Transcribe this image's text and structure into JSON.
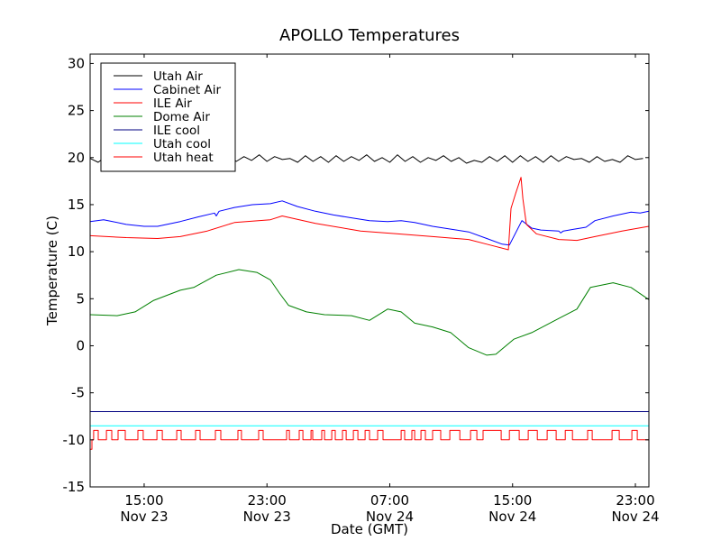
{
  "chart_data": {
    "type": "line",
    "title": "APOLLO Temperatures",
    "xlabel": "Date (GMT)",
    "ylabel": "Temperature (C)",
    "x_units": "hours since Nov 23 00:00 GMT",
    "xlim": [
      11.48,
      47.88
    ],
    "ylim": [
      -15,
      31
    ],
    "yticks": [
      -15,
      -10,
      -5,
      0,
      5,
      10,
      15,
      20,
      25,
      30
    ],
    "xticks": [
      {
        "x": 15,
        "time": "15:00",
        "date": "Nov 23"
      },
      {
        "x": 23,
        "time": "23:00",
        "date": "Nov 23"
      },
      {
        "x": 31,
        "time": "07:00",
        "date": "Nov 24"
      },
      {
        "x": 39,
        "time": "15:00",
        "date": "Nov 24"
      },
      {
        "x": 47,
        "time": "23:00",
        "date": "Nov 24"
      }
    ],
    "grid": false,
    "legend_position": "top-left",
    "series": [
      {
        "name": "Utah Air",
        "color": "#000000",
        "x_start": 11.5,
        "x_step": 0.5,
        "values": [
          19.9,
          19.5,
          20.1,
          19.6,
          20.2,
          19.5,
          20.0,
          19.6,
          20.3,
          19.5,
          20.1,
          19.7,
          20.2,
          19.6,
          20.0,
          19.8,
          19.9,
          19.5,
          20.2,
          19.6,
          20.1,
          19.7,
          20.3,
          19.6,
          20.1,
          19.8,
          19.9,
          19.5,
          20.2,
          19.6,
          20.1,
          19.5,
          20.2,
          19.6,
          20.1,
          19.7,
          20.3,
          19.6,
          20.0,
          19.5,
          20.3,
          19.6,
          20.1,
          19.5,
          20.0,
          19.7,
          20.2,
          19.6,
          20.0,
          19.4,
          19.7,
          19.5,
          20.1,
          19.6,
          20.2,
          19.5,
          20.2,
          19.6,
          20.1,
          19.5,
          20.2,
          19.6,
          20.1,
          19.8,
          19.9,
          19.5,
          20.1,
          19.6,
          19.8,
          19.5,
          20.2,
          19.8,
          19.9
        ]
      },
      {
        "name": "Cabinet Air",
        "color": "#0000ff",
        "points": [
          [
            11.48,
            13.2
          ],
          [
            12.36,
            13.4
          ],
          [
            12.95,
            13.2
          ],
          [
            13.83,
            12.9
          ],
          [
            15.0,
            12.7
          ],
          [
            15.88,
            12.7
          ],
          [
            17.35,
            13.2
          ],
          [
            18.53,
            13.7
          ],
          [
            19.58,
            14.1
          ],
          [
            19.7,
            13.8
          ],
          [
            19.88,
            14.3
          ],
          [
            20.88,
            14.7
          ],
          [
            22.05,
            15.0
          ],
          [
            23.22,
            15.1
          ],
          [
            23.99,
            15.4
          ],
          [
            24.98,
            14.8
          ],
          [
            26.16,
            14.3
          ],
          [
            27.33,
            13.9
          ],
          [
            28.51,
            13.6
          ],
          [
            29.68,
            13.3
          ],
          [
            30.86,
            13.2
          ],
          [
            31.74,
            13.3
          ],
          [
            32.62,
            13.1
          ],
          [
            33.79,
            12.7
          ],
          [
            34.97,
            12.4
          ],
          [
            36.14,
            12.1
          ],
          [
            37.32,
            11.4
          ],
          [
            38.32,
            10.8
          ],
          [
            38.79,
            10.7
          ],
          [
            39.61,
            13.3
          ],
          [
            40.25,
            12.5
          ],
          [
            40.84,
            12.3
          ],
          [
            42.01,
            12.2
          ],
          [
            42.13,
            12.0
          ],
          [
            42.31,
            12.2
          ],
          [
            43.78,
            12.6
          ],
          [
            44.37,
            13.3
          ],
          [
            45.55,
            13.8
          ],
          [
            46.72,
            14.2
          ],
          [
            47.31,
            14.1
          ],
          [
            47.88,
            14.3
          ]
        ]
      },
      {
        "name": "ILE Air",
        "color": "#ff0000",
        "points": [
          [
            11.48,
            11.7
          ],
          [
            13.83,
            11.5
          ],
          [
            15.88,
            11.4
          ],
          [
            17.35,
            11.6
          ],
          [
            19.11,
            12.2
          ],
          [
            20.88,
            13.1
          ],
          [
            23.22,
            13.4
          ],
          [
            23.99,
            13.8
          ],
          [
            26.16,
            13.0
          ],
          [
            29.1,
            12.2
          ],
          [
            31.45,
            11.9
          ],
          [
            33.79,
            11.6
          ],
          [
            36.14,
            11.3
          ],
          [
            37.32,
            10.8
          ],
          [
            38.73,
            10.2
          ],
          [
            38.9,
            14.6
          ],
          [
            39.2,
            16.2
          ],
          [
            39.55,
            17.9
          ],
          [
            39.67,
            15.6
          ],
          [
            39.9,
            12.9
          ],
          [
            40.55,
            11.9
          ],
          [
            42.01,
            11.3
          ],
          [
            43.19,
            11.2
          ],
          [
            44.37,
            11.6
          ],
          [
            46.13,
            12.2
          ],
          [
            47.88,
            12.7
          ]
        ]
      },
      {
        "name": "Dome Air",
        "color": "#008000",
        "points": [
          [
            11.48,
            3.3
          ],
          [
            13.24,
            3.2
          ],
          [
            14.41,
            3.6
          ],
          [
            15.59,
            4.8
          ],
          [
            17.35,
            5.9
          ],
          [
            18.23,
            6.2
          ],
          [
            19.7,
            7.5
          ],
          [
            21.17,
            8.1
          ],
          [
            22.34,
            7.8
          ],
          [
            23.22,
            7.0
          ],
          [
            23.81,
            5.6
          ],
          [
            24.4,
            4.3
          ],
          [
            25.57,
            3.6
          ],
          [
            26.75,
            3.3
          ],
          [
            28.51,
            3.2
          ],
          [
            29.68,
            2.7
          ],
          [
            30.86,
            3.9
          ],
          [
            31.74,
            3.6
          ],
          [
            32.62,
            2.4
          ],
          [
            33.79,
            2.0
          ],
          [
            34.97,
            1.4
          ],
          [
            36.14,
            -0.2
          ],
          [
            37.32,
            -1.0
          ],
          [
            37.91,
            -0.9
          ],
          [
            39.08,
            0.7
          ],
          [
            40.25,
            1.4
          ],
          [
            42.01,
            2.9
          ],
          [
            43.19,
            3.9
          ],
          [
            44.07,
            6.2
          ],
          [
            45.55,
            6.7
          ],
          [
            46.72,
            6.2
          ],
          [
            47.88,
            4.9
          ]
        ]
      },
      {
        "name": "ILE cool",
        "color": "#000080",
        "points": [
          [
            11.48,
            -7.0
          ],
          [
            47.88,
            -7.0
          ]
        ]
      },
      {
        "name": "Utah cool",
        "color": "#00ffff",
        "points": [
          [
            11.48,
            -8.5
          ],
          [
            47.88,
            -8.5
          ]
        ]
      },
      {
        "name": "Utah heat",
        "color": "#ff0000",
        "low": -10,
        "high": -9,
        "initial": -11,
        "initial_until": 11.6,
        "on_intervals": [
          [
            11.71,
            12.01
          ],
          [
            12.54,
            12.89
          ],
          [
            13.3,
            13.77
          ],
          [
            14.59,
            14.94
          ],
          [
            15.83,
            16.18
          ],
          [
            17.12,
            17.41
          ],
          [
            18.35,
            18.64
          ],
          [
            19.64,
            19.99
          ],
          [
            21.11,
            21.34
          ],
          [
            22.46,
            22.75
          ],
          [
            24.28,
            24.46
          ],
          [
            25.1,
            25.34
          ],
          [
            25.87,
            25.98
          ],
          [
            26.57,
            26.75
          ],
          [
            27.22,
            27.45
          ],
          [
            27.92,
            28.16
          ],
          [
            28.63,
            28.92
          ],
          [
            29.39,
            29.68
          ],
          [
            30.21,
            30.56
          ],
          [
            31.74,
            31.97
          ],
          [
            32.44,
            32.62
          ],
          [
            33.03,
            33.32
          ],
          [
            33.79,
            34.32
          ],
          [
            34.91,
            35.56
          ],
          [
            36.26,
            36.67
          ],
          [
            37.08,
            38.26
          ],
          [
            38.79,
            39.43
          ],
          [
            40.02,
            40.61
          ],
          [
            41.25,
            41.84
          ],
          [
            42.43,
            42.9
          ],
          [
            43.89,
            44.19
          ],
          [
            45.48,
            45.95
          ],
          [
            46.77,
            47.12
          ]
        ]
      }
    ]
  }
}
